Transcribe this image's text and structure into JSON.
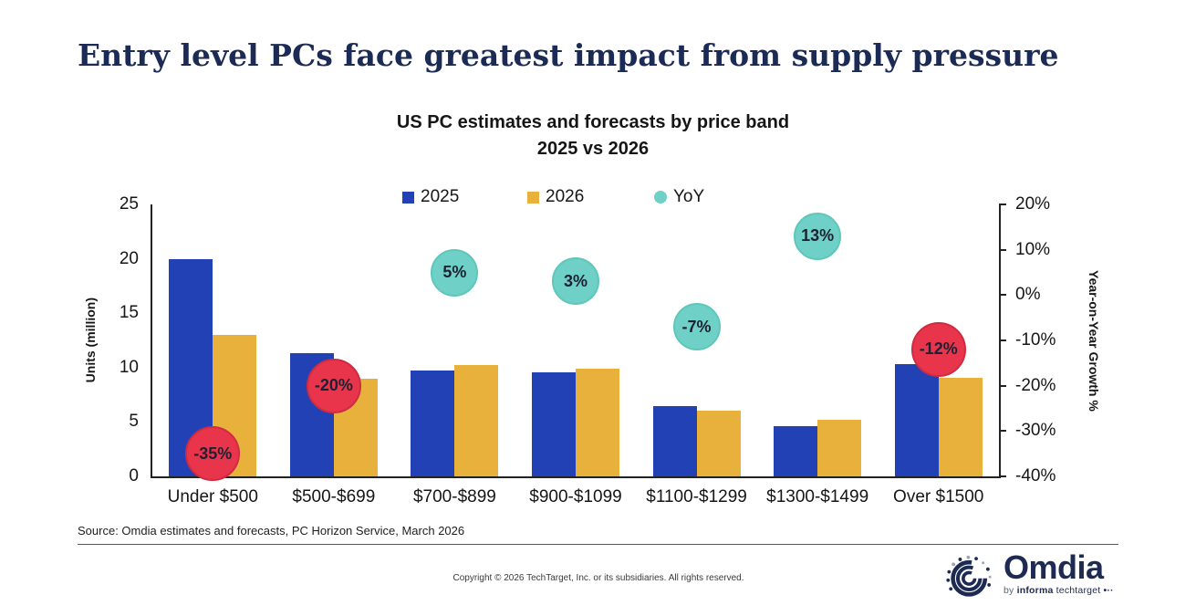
{
  "page": {
    "title": "Entry level PCs face greatest impact from supply pressure",
    "source": "Source: Omdia estimates and forecasts, PC Horizon Service, March 2026",
    "copyright": "Copyright © 2026 TechTarget, Inc. or its subsidiaries. All rights reserved."
  },
  "branding": {
    "logo_text": "Omdia",
    "tagline_by": "by",
    "tagline_informa": "informa",
    "tagline_techtarget": "techtarget",
    "tagline_dots": "•··",
    "logo_color": "#1d2b52"
  },
  "chart_data": {
    "type": "bar",
    "title": "US PC estimates and forecasts by price band",
    "subtitle": "2025 vs 2026",
    "categories": [
      "Under $500",
      "$500-$699",
      "$700-$899",
      "$900-$1099",
      "$1100-$1299",
      "$1300-$1499",
      "Over $1500"
    ],
    "series": [
      {
        "name": "2025",
        "color": "#2141b4",
        "values": [
          20.0,
          11.3,
          9.7,
          9.6,
          6.5,
          4.6,
          10.3
        ]
      },
      {
        "name": "2026",
        "color": "#e7b13c",
        "values": [
          13.0,
          9.0,
          10.2,
          9.9,
          6.0,
          5.2,
          9.1
        ]
      }
    ],
    "yoy_legend": {
      "label": "YoY",
      "color": "#6ed0c6"
    },
    "yoy": [
      {
        "label": "-35%",
        "value": -35,
        "color": "#e8354b"
      },
      {
        "label": "-20%",
        "value": -20,
        "color": "#e8354b"
      },
      {
        "label": "5%",
        "value": 5,
        "color": "#6ed0c6"
      },
      {
        "label": "3%",
        "value": 3,
        "color": "#6ed0c6"
      },
      {
        "label": "-7%",
        "value": -7,
        "color": "#6ed0c6"
      },
      {
        "label": "13%",
        "value": 13,
        "color": "#6ed0c6"
      },
      {
        "label": "-12%",
        "value": -12,
        "color": "#e8354b"
      }
    ],
    "ylabel_left": "Units (million)",
    "ylabel_right": "Year-on-Year Growth %",
    "yaxis_left": {
      "min": 0,
      "max": 25,
      "ticks": [
        0,
        5,
        10,
        15,
        20,
        25
      ]
    },
    "yaxis_right": {
      "min": -40,
      "max": 20,
      "tick_values": [
        20,
        10,
        0,
        -10,
        -20,
        -30,
        -40
      ],
      "tick_labels": [
        "20%",
        "10%",
        "0%",
        "-10%",
        "-20%",
        "-30%",
        "-40%"
      ]
    },
    "grid": false,
    "legend_position": "top"
  }
}
